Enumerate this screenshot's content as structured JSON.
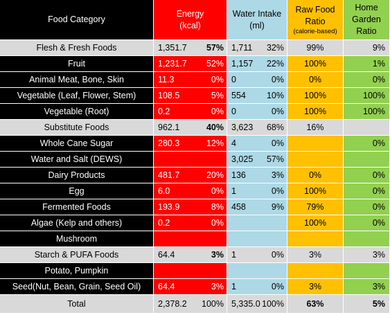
{
  "header": {
    "category": "Food Category",
    "energy_l1": "Energy",
    "energy_l2": "(kcal)",
    "water_l1": "Water Intake",
    "water_l2": "(ml)",
    "raw_l1": "Raw Food",
    "raw_l2": "Ratio",
    "raw_l3": "(calorie-based)",
    "garden_l1": "Home",
    "garden_l2": "Garden",
    "garden_l3": "Ratio"
  },
  "rows": [
    {
      "kind": "summary",
      "category": "Flesh & Fresh Foods",
      "energy": "1,351.7",
      "energy_pct": "57%",
      "water": "1,711",
      "water_pct": "32%",
      "raw": "99%",
      "garden": "9%"
    },
    {
      "kind": "item",
      "category": "Fruit",
      "energy": "1,231.7",
      "energy_pct": "52%",
      "water": "1,157",
      "water_pct": "22%",
      "raw": "100%",
      "garden": "1%"
    },
    {
      "kind": "item",
      "category": "Animal Meat, Bone, Skin",
      "energy": "11.3",
      "energy_pct": "0%",
      "water": "0",
      "water_pct": "0%",
      "raw": "0%",
      "garden": "0%"
    },
    {
      "kind": "item",
      "category": "Vegetable (Leaf, Flower, Stem)",
      "energy": "108.5",
      "energy_pct": "5%",
      "water": "554",
      "water_pct": "10%",
      "raw": "100%",
      "garden": "100%"
    },
    {
      "kind": "item",
      "category": "Vegetable (Root)",
      "energy": "0.2",
      "energy_pct": "0%",
      "water": "0",
      "water_pct": "0%",
      "raw": "100%",
      "garden": "100%"
    },
    {
      "kind": "summary",
      "category": "Substitute Foods",
      "energy": "962.1",
      "energy_pct": "40%",
      "water": "3,623",
      "water_pct": "68%",
      "raw": "16%",
      "garden": ""
    },
    {
      "kind": "item",
      "category": "Whole Cane Sugar",
      "energy": "280.3",
      "energy_pct": "12%",
      "water": "4",
      "water_pct": "0%",
      "raw": "",
      "garden": "0%"
    },
    {
      "kind": "item",
      "category": "Water and Salt (DEWS)",
      "energy": "",
      "energy_pct": "",
      "water": "3,025",
      "water_pct": "57%",
      "raw": "",
      "garden": ""
    },
    {
      "kind": "item",
      "category": "Dairy Products",
      "energy": "481.7",
      "energy_pct": "20%",
      "water": "136",
      "water_pct": "3%",
      "raw": "0%",
      "garden": "0%"
    },
    {
      "kind": "item",
      "category": "Egg",
      "energy": "6.0",
      "energy_pct": "0%",
      "water": "1",
      "water_pct": "0%",
      "raw": "100%",
      "garden": "0%"
    },
    {
      "kind": "item",
      "category": "Fermented Foods",
      "energy": "193.9",
      "energy_pct": "8%",
      "water": "458",
      "water_pct": "9%",
      "raw": "79%",
      "garden": "0%"
    },
    {
      "kind": "item",
      "category": "Algae (Kelp and others)",
      "energy": "0.2",
      "energy_pct": "0%",
      "water": "",
      "water_pct": "",
      "raw": "100%",
      "garden": "0%"
    },
    {
      "kind": "item",
      "category": "Mushroom",
      "energy": "",
      "energy_pct": "",
      "water": "",
      "water_pct": "",
      "raw": "",
      "garden": ""
    },
    {
      "kind": "summary",
      "category": "Starch & PUFA Foods",
      "energy": "64.4",
      "energy_pct": "3%",
      "water": "1",
      "water_pct": "0%",
      "raw": "3%",
      "garden": "3%"
    },
    {
      "kind": "item",
      "category": "Potato, Pumpkin",
      "energy": "",
      "energy_pct": "",
      "water": "",
      "water_pct": "",
      "raw": "",
      "garden": ""
    },
    {
      "kind": "item",
      "category": "Seed(Nut, Bean, Grain, Seed Oil)",
      "energy": "64.4",
      "energy_pct": "3%",
      "water": "1",
      "water_pct": "0%",
      "raw": "3%",
      "garden": "3%"
    },
    {
      "kind": "total",
      "category": "Total",
      "energy": "2,378.2",
      "energy_pct": "100%",
      "water": "5,335.0",
      "water_pct": "100%",
      "raw": "63%",
      "garden": "5%"
    }
  ],
  "colors": {
    "category_dark": "#000000",
    "summary_grey": "#d9d9d9",
    "energy_red": "#ff0000",
    "water_blue": "#add8e6",
    "raw_gold": "#ffc000",
    "garden_green": "#92d050"
  }
}
